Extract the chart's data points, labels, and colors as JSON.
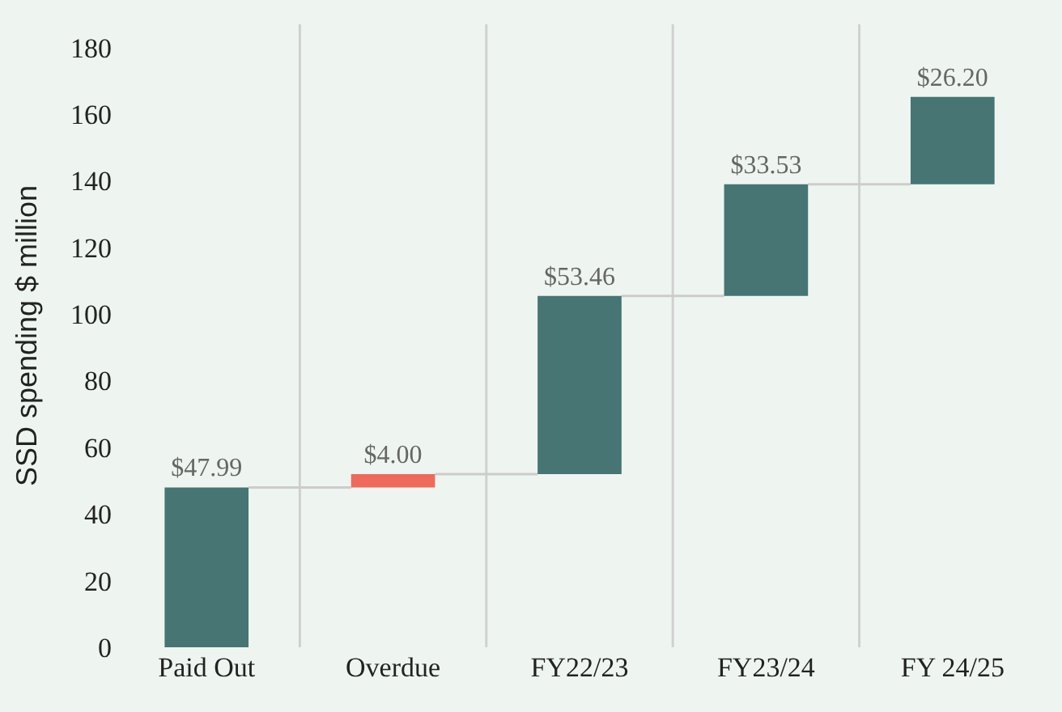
{
  "chart_data": {
    "type": "bar",
    "ylabel": "SSD spending $ million",
    "categories": [
      "Paid Out",
      "Overdue",
      "FY22/23",
      "FY23/24",
      "FY 24/25"
    ],
    "values": [
      47.99,
      4.0,
      53.46,
      33.53,
      26.2
    ],
    "base": [
      0,
      47.99,
      51.99,
      105.45,
      138.98
    ],
    "colors": [
      "#467573",
      "#ee6a5c",
      "#467573",
      "#467573",
      "#467573"
    ],
    "value_labels": [
      "$47.99",
      "$4.00",
      "$53.46",
      "$33.53",
      "$26.20"
    ],
    "ylim": [
      0,
      187
    ],
    "yticks": [
      0,
      20,
      40,
      60,
      80,
      100,
      120,
      140,
      160,
      180
    ],
    "grid": "x",
    "legend": false
  }
}
